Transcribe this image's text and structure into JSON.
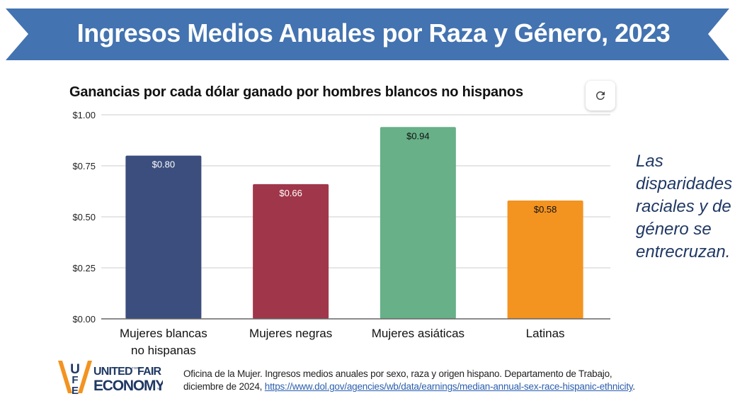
{
  "banner": {
    "title": "Ingresos Medios Anuales por Raza y Género, 2023",
    "color": "#4373b0"
  },
  "toolbar": {
    "refresh_icon": "refresh-icon"
  },
  "side_note": "Las disparidades raciales y de género se entrecruzan.",
  "logo": {
    "line1a": "UNITED",
    "small": "FOR A",
    "line1b": "FAIR",
    "line2": "ECONOMY",
    "mark": "UFE",
    "tm": "™"
  },
  "citation": {
    "text1": "Oficina de la Mujer. Ingresos medios anuales por sexo, raza y origen hispano. Departamento de Trabajo,",
    "text2": "diciembre de 2024, ",
    "link": "https://www.dol.gov/agencies/wb/data/earnings/median-annual-sex-race-hispanic-ethnicity",
    "text3": "."
  },
  "chart_data": {
    "type": "bar",
    "title": "Ganancias por cada dólar ganado por hombres blancos no hispanos",
    "xlabel": "",
    "ylabel": "",
    "ylim": [
      0,
      1.0
    ],
    "yticks": [
      0,
      0.25,
      0.5,
      0.75,
      1.0
    ],
    "ytick_labels": [
      "$0.00",
      "$0.25",
      "$0.50",
      "$0.75",
      "$1.00"
    ],
    "grid": true,
    "legend": "none",
    "categories": [
      [
        "Mujeres blancas",
        "no hispanas"
      ],
      [
        "Mujeres negras"
      ],
      [
        "Mujeres asiáticas"
      ],
      [
        "Latinas"
      ]
    ],
    "values": [
      0.8,
      0.66,
      0.94,
      0.58
    ],
    "data_labels": [
      "$0.80",
      "$0.66",
      "$0.94",
      "$0.58"
    ],
    "colors": [
      "#3b4e7e",
      "#a0364a",
      "#67b088",
      "#f39320"
    ],
    "label_colors": [
      "#ffffff",
      "#ffffff",
      "#111111",
      "#111111"
    ]
  }
}
